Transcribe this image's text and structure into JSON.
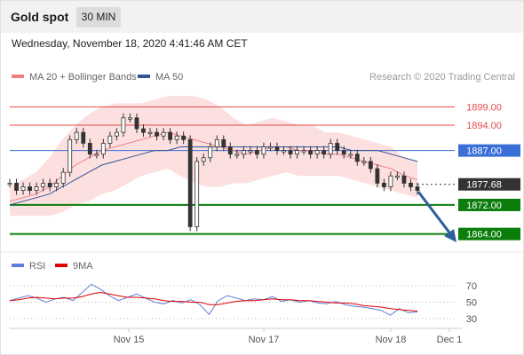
{
  "header": {
    "title": "Gold spot",
    "timeframe": "30 MIN"
  },
  "datetime": "Wednesday, November 18, 2020 4:41:46 AM CET",
  "legend": {
    "ma20": "MA 20 + Bollinger Bands",
    "ma50": "MA 50",
    "credit": "Research © 2020 Trading Central",
    "rsi": "RSI",
    "rsi_ma": "9MA"
  },
  "colors": {
    "ma20": "#f08080",
    "ma50": "#2f5597",
    "band": "#fcd9d9",
    "resistance": "#e84a4a",
    "pivot": "#3a6fd8",
    "support": "#0a7d0a",
    "last": "#333333",
    "arrow": "#2e5e9c",
    "rsi": "#5b7fd6",
    "rsi_ma": "#e00000"
  },
  "chart_data": {
    "type": "line",
    "title": "Gold spot",
    "x_ticks": [
      "Nov 15",
      "Nov 17",
      "Nov 18",
      "Dec 1"
    ],
    "ylim": [
      1860,
      1905
    ],
    "levels": [
      {
        "label": "1899.00",
        "value": 1899.0,
        "kind": "resistance"
      },
      {
        "label": "1894.00",
        "value": 1894.0,
        "kind": "resistance"
      },
      {
        "label": "1887.00",
        "value": 1887.0,
        "kind": "pivot"
      },
      {
        "label": "1877.68",
        "value": 1877.68,
        "kind": "last"
      },
      {
        "label": "1872.00",
        "value": 1872.0,
        "kind": "support"
      },
      {
        "label": "1864.00",
        "value": 1864.0,
        "kind": "support"
      }
    ],
    "series": [
      {
        "name": "MA 20 + Bollinger Bands",
        "values": [
          1873,
          1874,
          1875,
          1877,
          1880,
          1883,
          1885,
          1887,
          1888,
          1889,
          1890,
          1891,
          1892,
          1891,
          1890,
          1889,
          1888,
          1887,
          1886,
          1887,
          1888,
          1888,
          1887,
          1887,
          1886,
          1886,
          1885,
          1884,
          1883,
          1882,
          1880,
          1879
        ]
      },
      {
        "name": "MA 50",
        "values": [
          1872,
          1873,
          1874,
          1875,
          1877,
          1879,
          1881,
          1883,
          1884,
          1885,
          1886,
          1887,
          1887,
          1888,
          1888,
          1888,
          1888,
          1888,
          1888,
          1888,
          1888,
          1888,
          1888,
          1888,
          1888,
          1888,
          1887,
          1887,
          1887,
          1886,
          1885,
          1884
        ]
      }
    ],
    "price": [
      1878,
      1876,
      1877,
      1876,
      1877,
      1878,
      1877,
      1878,
      1881,
      1890,
      1892,
      1889,
      1886,
      1886,
      1889,
      1891,
      1892,
      1896,
      1896,
      1893,
      1892,
      1892,
      1891,
      1892,
      1890,
      1891,
      1890,
      1866,
      1884,
      1885,
      1888,
      1890,
      1888,
      1886,
      1886,
      1887,
      1887,
      1886,
      1888,
      1888,
      1887,
      1887,
      1886,
      1887,
      1887,
      1886,
      1887,
      1886,
      1889,
      1887,
      1886,
      1886,
      1884,
      1884,
      1882,
      1878,
      1877,
      1880,
      1880,
      1878,
      1877,
      1876
    ],
    "rsi": {
      "yticks": [
        70,
        50,
        30
      ],
      "ylim": [
        20,
        80
      ],
      "values": [
        52,
        55,
        58,
        55,
        50,
        54,
        56,
        52,
        62,
        72,
        66,
        58,
        52,
        56,
        60,
        55,
        50,
        48,
        52,
        49,
        53,
        47,
        35,
        52,
        58,
        55,
        52,
        54,
        53,
        57,
        51,
        53,
        50,
        52,
        49,
        48,
        51,
        47,
        45,
        44,
        42,
        40,
        34,
        42,
        37,
        38
      ],
      "ma": [
        52,
        53,
        55,
        56,
        55,
        54,
        55,
        55,
        57,
        60,
        62,
        60,
        58,
        56,
        56,
        55,
        54,
        52,
        51,
        51,
        50,
        50,
        47,
        47,
        49,
        51,
        52,
        52,
        53,
        54,
        53,
        53,
        52,
        52,
        51,
        50,
        49,
        49,
        48,
        46,
        45,
        44,
        42,
        41,
        40,
        39
      ]
    }
  }
}
